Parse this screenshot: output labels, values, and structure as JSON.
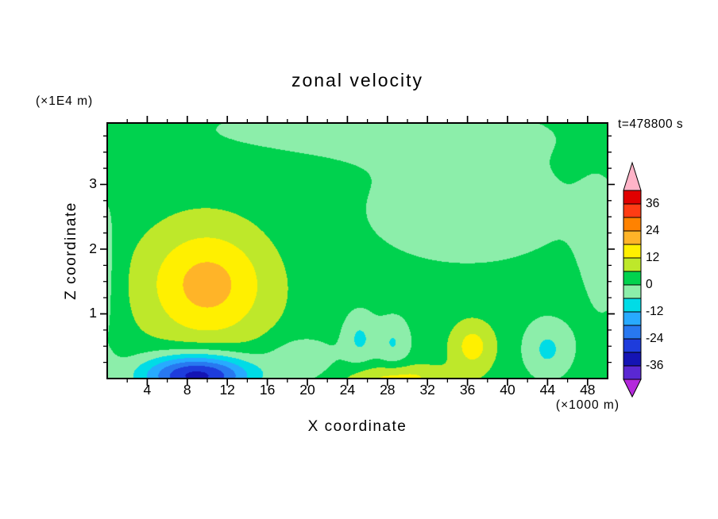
{
  "chart_data": {
    "type": "heatmap",
    "subtype": "filled_contour",
    "title": "zonal velocity",
    "time_label": "t=478800 s",
    "xlabel": "X coordinate",
    "ylabel": "Z coordinate",
    "x_units": "(×1000 m)",
    "z_units": "(×1E4 m)",
    "x_range": [
      0,
      50
    ],
    "z_range": [
      0,
      3.95
    ],
    "x_major_ticks": [
      4,
      8,
      12,
      16,
      20,
      24,
      28,
      32,
      36,
      40,
      44,
      48
    ],
    "x_minor_step": 2,
    "z_major_ticks": [
      1,
      2,
      3
    ],
    "z_minor_step": 0.25,
    "levels": [
      -42,
      -36,
      -30,
      -24,
      -18,
      -12,
      -6,
      0,
      6,
      12,
      18,
      24,
      30,
      36,
      42
    ],
    "palette": [
      "#b428dc",
      "#5a28d2",
      "#1414b4",
      "#1e3cdc",
      "#2878f0",
      "#28aaff",
      "#00dce6",
      "#8ceeaa",
      "#00d24e",
      "#bee82a",
      "#fff000",
      "#ffb428",
      "#ff8200",
      "#ff3c14",
      "#e10000",
      "#ffb4c8"
    ],
    "colorbar_labels": [
      36,
      24,
      12,
      0,
      -12,
      -24,
      -36
    ],
    "field_model": {
      "description": "value(x,z) = background + sum of gaussian anomalies; x in 1000 m, z in 1E4 m, value in colorbar units",
      "background": 3,
      "gaussians": [
        {
          "cx": 10,
          "cz": 1.45,
          "sx": 6.2,
          "sz": 0.9,
          "amp": 17.5
        },
        {
          "cx": 9,
          "cz": 0.05,
          "sx": 5.5,
          "sz": 0.33,
          "amp": -36
        },
        {
          "cx": 19.5,
          "cz": 0.3,
          "sx": 3.2,
          "sz": 0.33,
          "amp": -8.5
        },
        {
          "cx": 25.2,
          "cz": 0.62,
          "sx": 1.7,
          "sz": 0.42,
          "amp": -9.5
        },
        {
          "cx": 28.6,
          "cz": 0.55,
          "sx": 1.7,
          "sz": 0.4,
          "amp": -9
        },
        {
          "cx": 29,
          "cz": 0,
          "sx": 5,
          "sz": 0.22,
          "amp": 11.5
        },
        {
          "cx": 36.5,
          "cz": 0.5,
          "sx": 2.2,
          "sz": 0.4,
          "amp": 11.5
        },
        {
          "cx": 36,
          "cz": 2.6,
          "sx": 13,
          "sz": 1.05,
          "amp": -5.5
        },
        {
          "cx": 0,
          "cz": 1.6,
          "sx": 1.4,
          "sz": 1.6,
          "amp": -5
        },
        {
          "cx": 44,
          "cz": 0.45,
          "sx": 2.4,
          "sz": 0.45,
          "amp": -10
        },
        {
          "cx": 25,
          "cz": 3.85,
          "sx": 22,
          "sz": 0.5,
          "amp": -4.5
        },
        {
          "cx": 49.5,
          "cz": 1.8,
          "sx": 2.6,
          "sz": 1.3,
          "amp": -4
        }
      ]
    }
  }
}
